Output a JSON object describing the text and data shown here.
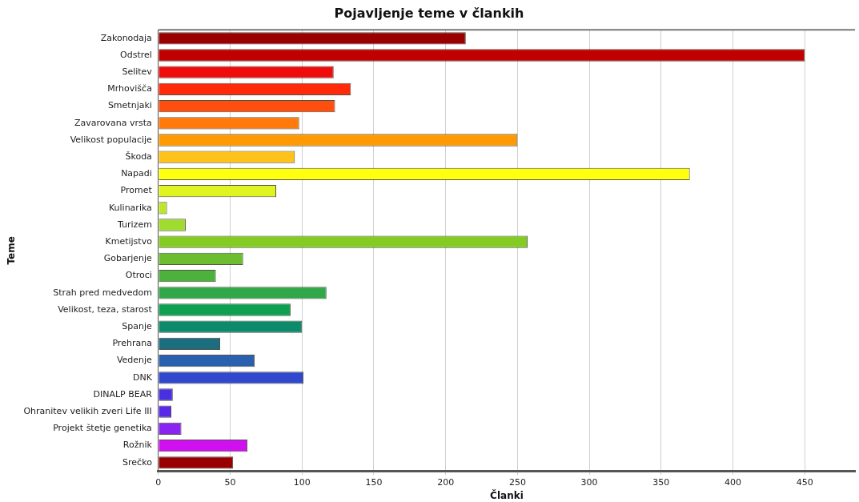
{
  "chart_data": {
    "type": "bar",
    "orientation": "horizontal",
    "title": "Pojavljenje teme v člankih",
    "xlabel": "Članki",
    "ylabel": "Teme",
    "categories": [
      "Zakonodaja",
      "Odstrel",
      "Selitev",
      "Mrhovišča",
      "Smetnjaki",
      "Zavarovana vrsta",
      "Velikost populacije",
      "Škoda",
      "Napadi",
      "Promet",
      "Kulinarika",
      "Turizem",
      "Kmetijstvo",
      "Gobarjenje",
      "Otroci",
      "Strah pred medvedom",
      "Velikost, teza, starost",
      "Spanje",
      "Prehrana",
      "Vedenje",
      "DNK",
      "DINALP BEAR",
      "Ohranitev velikih zveri Life III",
      "Projekt štetje genetika",
      "Rožnik",
      "Srečko"
    ],
    "values": [
      214,
      450,
      122,
      134,
      123,
      98,
      250,
      95,
      370,
      82,
      6,
      19,
      257,
      59,
      40,
      117,
      92,
      100,
      43,
      67,
      101,
      10,
      9,
      16,
      62,
      52
    ],
    "colors": [
      "#990000",
      "#c00000",
      "#ee0c0c",
      "#ff2a0a",
      "#ff4e0e",
      "#ff7a0a",
      "#ff9a05",
      "#ffc21a",
      "#ffff10",
      "#e0f420",
      "#bce62a",
      "#a0dc30",
      "#84cc24",
      "#6cbe30",
      "#4cb23c",
      "#30a84a",
      "#0ca050",
      "#0d8a6a",
      "#1a6e80",
      "#2a60b0",
      "#3048cc",
      "#4830e0",
      "#5a28e8",
      "#8a24f0",
      "#d010f0",
      "#990000"
    ],
    "xlim": [
      0,
      485
    ],
    "xticks": [
      0,
      50,
      100,
      150,
      200,
      250,
      300,
      350,
      400,
      450
    ],
    "grid": "x",
    "legend": false
  }
}
